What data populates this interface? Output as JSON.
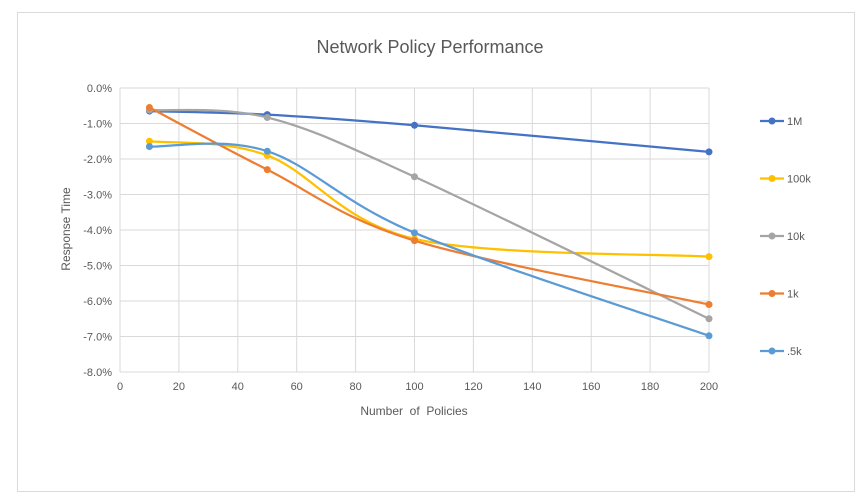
{
  "chart_data": {
    "type": "line",
    "title": "Network Policy Performance",
    "xlabel": "Number  of  Policies",
    "ylabel": "Response Time",
    "xlim": [
      0,
      200
    ],
    "ylim": [
      -8.0,
      0.0
    ],
    "x_ticks": [
      "0",
      "20",
      "40",
      "60",
      "80",
      "100",
      "120",
      "140",
      "160",
      "180",
      "200"
    ],
    "y_ticks": [
      "0.0%",
      "-1.0%",
      "-2.0%",
      "-3.0%",
      "-4.0%",
      "-5.0%",
      "-6.0%",
      "-7.0%",
      "-8.0%"
    ],
    "x": [
      10,
      50,
      100,
      200
    ],
    "smooth": true,
    "grid": true,
    "legend_position": "right",
    "series": [
      {
        "name": "1M",
        "color": "#4472C4",
        "values": [
          -0.65,
          -0.75,
          -1.05,
          -1.8
        ]
      },
      {
        "name": "100k",
        "color": "#FFC000",
        "values": [
          -1.5,
          -1.9,
          -4.25,
          -4.75
        ]
      },
      {
        "name": "10k",
        "color": "#A5A5A5",
        "values": [
          -0.62,
          -0.83,
          -2.5,
          -6.5
        ]
      },
      {
        "name": "1k",
        "color": "#ED7D31",
        "values": [
          -0.55,
          -2.3,
          -4.3,
          -6.1
        ]
      },
      {
        "name": ".5k",
        "color": "#5B9BD5",
        "values": [
          -1.65,
          -1.78,
          -4.08,
          -6.98
        ]
      }
    ]
  }
}
